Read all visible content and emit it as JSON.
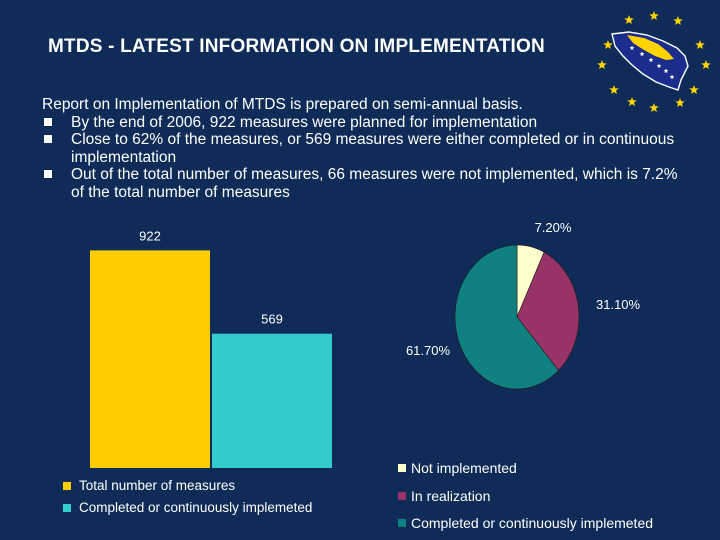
{
  "slide": {
    "title": "MTDS  - LATEST INFORMATION ON IMPLEMENTATION",
    "intro": "Report on Implementation of MTDS is prepared on semi-annual basis.",
    "bullets": [
      "By the end of 2006, 922 measures were planned for implementation",
      "Close to 62% of the measures, or 569 measures were either completed or in continuous implementation",
      "Out of the total number of measures, 66 measures were not implemented, which is 7.2% of the total number of measures"
    ],
    "logo_icon": "bosnia-flag-icon"
  },
  "colors": {
    "background": "#0f2b57",
    "bar_total": "#ffcc00",
    "bar_completed": "#33cccc",
    "pie_not_implemented": "#ffffcc",
    "pie_in_realization": "#993366",
    "pie_completed": "#108080",
    "flag_star": "#ffd400"
  },
  "chart_data": [
    {
      "type": "bar",
      "categories": [
        "Total number of measures",
        "Completed or continuously implemeted"
      ],
      "values": [
        922,
        569
      ],
      "data_labels": [
        "922",
        "569"
      ],
      "ylim": [
        0,
        1000
      ],
      "legend": "bottom",
      "grid": false
    },
    {
      "type": "pie",
      "labels": [
        "Not implemented",
        "In realization",
        "Completed or continuously implemeted"
      ],
      "values": [
        7.2,
        31.1,
        61.7
      ],
      "data_labels": [
        "7.20%",
        "31.10%",
        "61.70%"
      ],
      "legend": "bottom",
      "start": "top, clockwise"
    }
  ]
}
